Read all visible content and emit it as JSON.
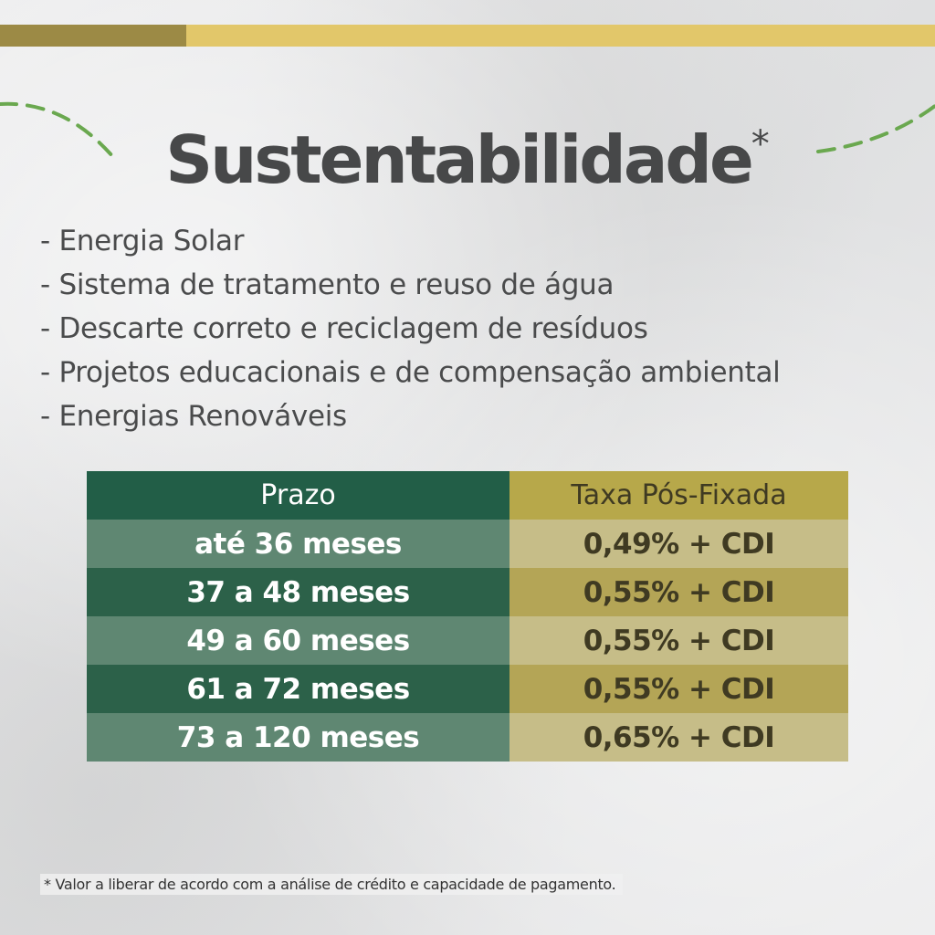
{
  "colors": {
    "top_bar_dark": "#9c8a45",
    "top_bar_light": "#e2c76a",
    "dash_green": "#6aa84f",
    "title": "#474849",
    "header_left_bg": "#225e47",
    "header_right_bg": "#b7a84a",
    "row_dark_left": "#2c6149",
    "row_light_left": "#5f8772",
    "row_dark_right": "#b4a556",
    "row_light_right": "#c6bd88",
    "left_text": "#ffffff",
    "right_text": "#3f3a22"
  },
  "title": {
    "text": "Sustentabilidade",
    "marker": "*"
  },
  "features": [
    "- Energia Solar",
    "- Sistema de tratamento e reuso de água",
    "- Descarte correto e reciclagem de resíduos",
    "- Projetos educacionais e de compensação ambiental",
    "- Energias Renováveis"
  ],
  "table": {
    "headers": [
      "Prazo",
      "Taxa Pós-Fixada"
    ],
    "rows": [
      [
        "até 36 meses",
        "0,49% + CDI"
      ],
      [
        "37 a 48 meses",
        "0,55% + CDI"
      ],
      [
        "49 a 60 meses",
        "0,55% + CDI"
      ],
      [
        "61 a 72 meses",
        "0,55% + CDI"
      ],
      [
        "73 a 120 meses",
        "0,65% + CDI"
      ]
    ]
  },
  "footnote": "* Valor a liberar de acordo com a análise de crédito e capacidade de pagamento."
}
